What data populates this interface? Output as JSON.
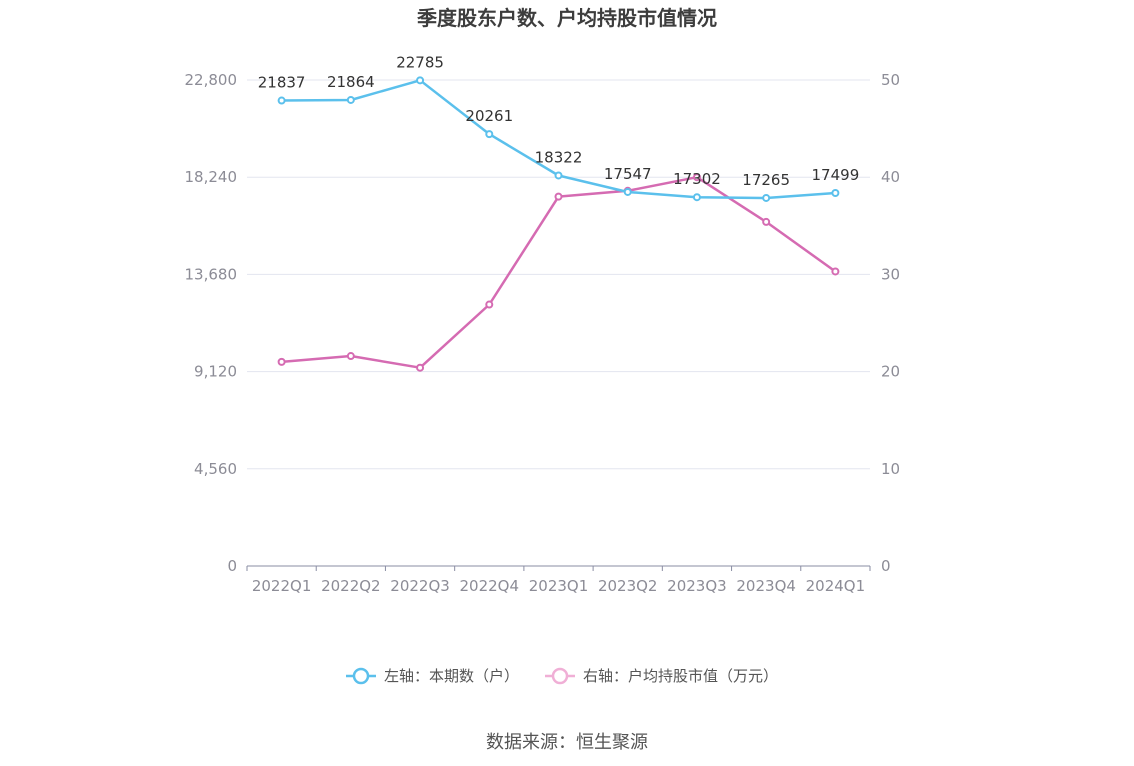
{
  "chart_data": {
    "type": "line",
    "title": "季度股东户数、户均持股市值情况",
    "categories": [
      "2022Q1",
      "2022Q2",
      "2022Q3",
      "2022Q4",
      "2023Q1",
      "2023Q2",
      "2023Q3",
      "2023Q4",
      "2024Q1"
    ],
    "left_axis": {
      "ticks": [
        "0",
        "4,560",
        "9,120",
        "13,680",
        "18,240",
        "22,800"
      ],
      "ylim": [
        0,
        22800
      ]
    },
    "right_axis": {
      "ticks": [
        "0",
        "10",
        "20",
        "30",
        "40",
        "50"
      ],
      "ylim": [
        0,
        50
      ]
    },
    "series": [
      {
        "name": "左轴：本期数（户）",
        "axis": "left",
        "color": "#5bc0ec",
        "values": [
          21837,
          21864,
          22785,
          20261,
          18322,
          17547,
          17302,
          17265,
          17499
        ],
        "labels": [
          "21837",
          "21864",
          "22785",
          "20261",
          "18322",
          "17547",
          "17302",
          "17265",
          "17499"
        ]
      },
      {
        "name": "右轴：户均持股市值（万元）",
        "axis": "right",
        "color": "#d56bb2",
        "values": [
          21.0,
          21.6,
          20.4,
          26.9,
          38.0,
          38.6,
          40.0,
          35.4,
          30.3
        ]
      }
    ],
    "grid": true,
    "legend": "bottom-center"
  },
  "source": "数据来源：恒生聚源"
}
